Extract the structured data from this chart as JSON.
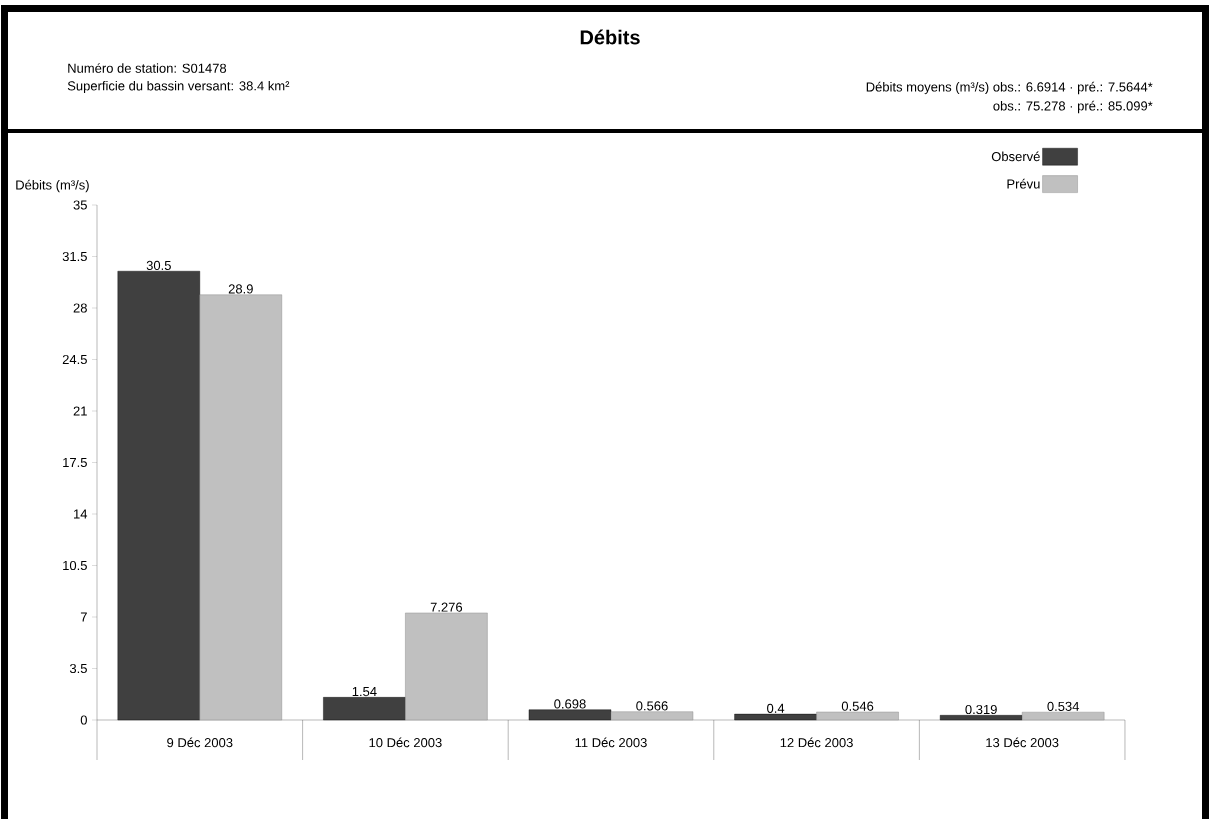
{
  "chart_data": {
    "type": "bar",
    "title": "Débits",
    "annotations": [
      "Numéro de station:  S01478",
      "Superficie du bassin versant: 38.4 km²",
      "Débits moyens (m³/s) obs.: 6.6914 · pré.: 7.5644*",
      "obs.: 75.278 · pré.: 85.099*"
    ],
    "ylabel": "Débits (m³/s)",
    "categories": [
      "9 Déc 2003",
      "10 Déc 2003",
      "11 Déc 2003",
      "12 Déc 2003",
      "13 Déc 2003"
    ],
    "series": [
      {
        "name": "Observé",
        "color": "#404040",
        "values": [
          30.5,
          1.54,
          0.698,
          0.4,
          0.319
        ]
      },
      {
        "name": "Prévu",
        "color": "#c0c0c0",
        "values": [
          28.9,
          7.276,
          0.566,
          0.546,
          0.534
        ]
      }
    ],
    "ylim": [
      0,
      35
    ],
    "yticks": [
      0,
      3.5,
      7,
      10.5,
      14,
      17.5,
      21,
      24.5,
      28,
      31.5,
      35
    ],
    "data_labels": true,
    "legend": "top right"
  }
}
